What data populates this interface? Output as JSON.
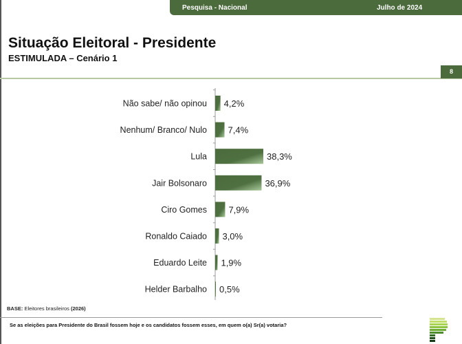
{
  "header": {
    "survey": "Pesquisa - Nacional",
    "date": "Julho de 2024",
    "page": "8"
  },
  "title": "Situação Eleitoral - Presidente",
  "subtitle": "ESTIMULADA – Cenário 1",
  "footer": {
    "base_label": "BASE:",
    "base_text": "Eleitores brasileiros",
    "base_year": "(2026)",
    "question": "Se as eleições para Presidente do Brasil fossem hoje e os candidatos fossem esses, em quem o(a) Sr(a) votaria?"
  },
  "colors": {
    "bar": "#4b6b3c",
    "accent": "#4b6b3c"
  },
  "chart_data": {
    "type": "bar",
    "orientation": "horizontal",
    "categories": [
      "Não sabe/ não opinou",
      "Nenhum/ Branco/ Nulo",
      "Lula",
      "Jair Bolsonaro",
      "Ciro Gomes",
      "Ronaldo Caiado",
      "Eduardo Leite",
      "Helder Barbalho"
    ],
    "values": [
      4.2,
      7.4,
      38.3,
      36.9,
      7.9,
      3.0,
      1.9,
      0.5
    ],
    "labels": [
      "4,2%",
      "7,4%",
      "38,3%",
      "36,9%",
      "7,9%",
      "3,0%",
      "1,9%",
      "0,5%"
    ],
    "unit": "%",
    "grid": false
  }
}
